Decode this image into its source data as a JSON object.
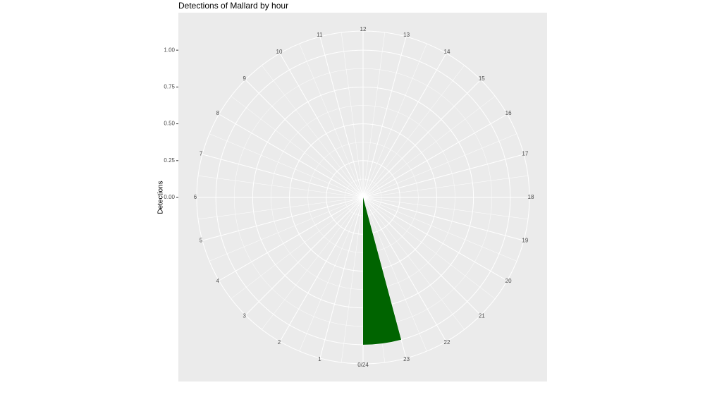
{
  "chart_data": {
    "type": "polar-bar",
    "title": "Detections of Mallard by hour",
    "y_label": "Detections",
    "x": [
      23
    ],
    "values": [
      1
    ],
    "color": "#006400",
    "xlim": [
      0,
      24
    ],
    "xticks": [
      {
        "value": 0,
        "label": "0/24"
      },
      1,
      2,
      3,
      4,
      5,
      6,
      7,
      8,
      9,
      10,
      11,
      12,
      13,
      14,
      15,
      16,
      17,
      18,
      19,
      20,
      21,
      22,
      23
    ],
    "ylim": [
      0,
      1.13
    ],
    "yticks": [
      {
        "value": 0,
        "label": "0.00"
      },
      {
        "value": 0.25,
        "label": "0.25"
      },
      {
        "value": 0.5,
        "label": "0.50"
      },
      {
        "value": 0.75,
        "label": "0.75"
      },
      {
        "value": 1,
        "label": "1.00"
      }
    ],
    "grid": true
  }
}
